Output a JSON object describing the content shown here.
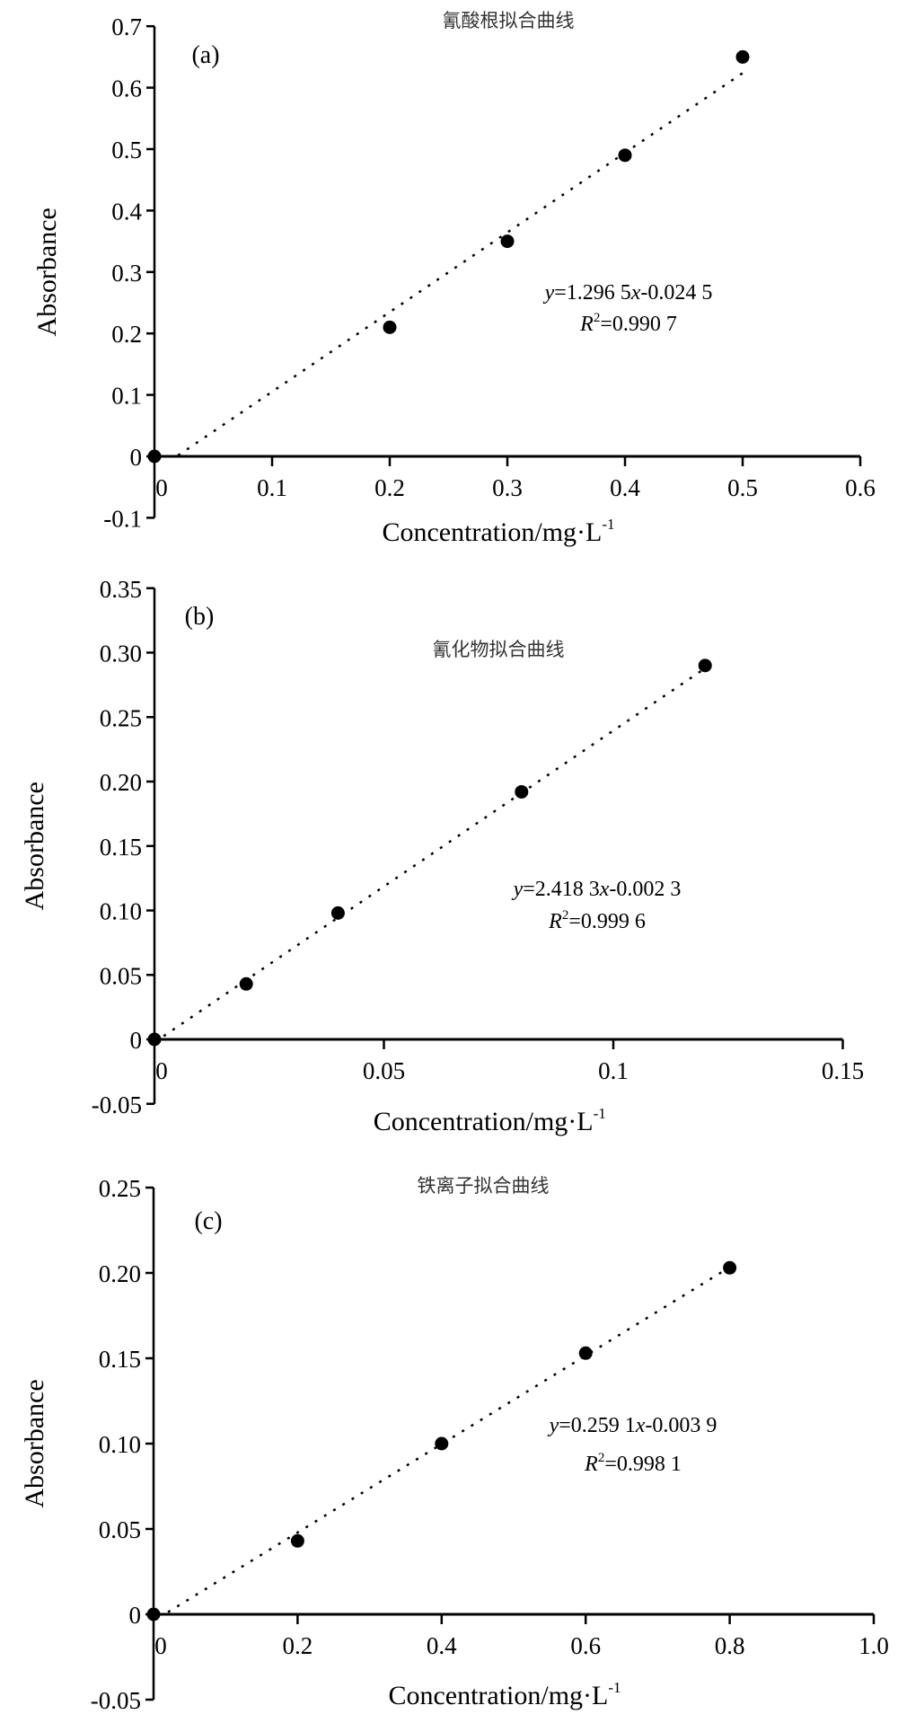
{
  "chart_data": [
    {
      "type": "scatter",
      "panel_label": "(a)",
      "title": "氰酸根拟合曲线",
      "xlabel": "Concentration/mg·L",
      "xlabel_sup": "-1",
      "ylabel": "Absorbance",
      "xlim": [
        0,
        0.6
      ],
      "ylim": [
        -0.1,
        0.7
      ],
      "x_ticks": [
        "0",
        "0.1",
        "0.2",
        "0.3",
        "0.4",
        "0.5",
        "0.6"
      ],
      "x_tick_values": [
        0,
        0.1,
        0.2,
        0.3,
        0.4,
        0.5,
        0.6
      ],
      "y_ticks": [
        "-0.1",
        "0",
        "0.1",
        "0.2",
        "0.3",
        "0.4",
        "0.5",
        "0.6",
        "0.7"
      ],
      "y_tick_values": [
        -0.1,
        0,
        0.1,
        0.2,
        0.3,
        0.4,
        0.5,
        0.6,
        0.7
      ],
      "x": [
        0,
        0.2,
        0.3,
        0.4,
        0.5
      ],
      "y": [
        0,
        0.21,
        0.35,
        0.49,
        0.65
      ],
      "fit": {
        "slope": 1.2965,
        "intercept": -0.0245,
        "x_range": [
          0.02,
          0.5
        ]
      },
      "equation": {
        "y": "y",
        "rhs1": "=1.296 5",
        "x": "x",
        "rhs2": "-0.024 5",
        "r": "R",
        "r_sup": "2",
        "r_val": "=0.990 7"
      },
      "grid": false
    },
    {
      "type": "scatter",
      "panel_label": "(b)",
      "title": "氰化物拟合曲线",
      "xlabel": "Concentration/mg·L",
      "xlabel_sup": "-1",
      "ylabel": "Absorbance",
      "xlim": [
        0,
        0.15
      ],
      "ylim": [
        -0.05,
        0.35
      ],
      "x_ticks": [
        "0",
        "0.05",
        "0.1",
        "0.15"
      ],
      "x_tick_values": [
        0,
        0.05,
        0.1,
        0.15
      ],
      "y_ticks": [
        "-0.05",
        "0",
        "0.05",
        "0.10",
        "0.15",
        "0.20",
        "0.25",
        "0.30",
        "0.35"
      ],
      "y_tick_values": [
        -0.05,
        0,
        0.05,
        0.1,
        0.15,
        0.2,
        0.25,
        0.3,
        0.35
      ],
      "x": [
        0,
        0.02,
        0.04,
        0.08,
        0.12
      ],
      "y": [
        0,
        0.043,
        0.098,
        0.192,
        0.29
      ],
      "fit": {
        "slope": 2.4183,
        "intercept": -0.0023,
        "x_range": [
          0.002,
          0.12
        ]
      },
      "equation": {
        "y": "y",
        "rhs1": "=2.418 3",
        "x": "x",
        "rhs2": "-0.002 3",
        "r": "R",
        "r_sup": "2",
        "r_val": "=0.999 6"
      },
      "grid": false
    },
    {
      "type": "scatter",
      "panel_label": "(c)",
      "title": "铁离子拟合曲线",
      "xlabel": "Concentration/mg·L",
      "xlabel_sup": "-1",
      "ylabel": "Absorbance",
      "xlim": [
        0,
        1.0
      ],
      "ylim": [
        -0.05,
        0.25
      ],
      "x_ticks": [
        "0",
        "0.2",
        "0.4",
        "0.6",
        "0.8",
        "1.0"
      ],
      "x_tick_values": [
        0,
        0.2,
        0.4,
        0.6,
        0.8,
        1.0
      ],
      "y_ticks": [
        "-0.05",
        "0",
        "0.05",
        "0.10",
        "0.15",
        "0.20",
        "0.25"
      ],
      "y_tick_values": [
        -0.05,
        0,
        0.05,
        0.1,
        0.15,
        0.2,
        0.25
      ],
      "x": [
        0,
        0.2,
        0.4,
        0.6,
        0.8
      ],
      "y": [
        0,
        0.043,
        0.1,
        0.153,
        0.203
      ],
      "fit": {
        "slope": 0.2591,
        "intercept": -0.0039,
        "x_range": [
          0.02,
          0.8
        ]
      },
      "equation": {
        "y": "y",
        "rhs1": "=0.259 1",
        "x": "x",
        "rhs2": "-0.003 9",
        "r": "R",
        "r_sup": "2",
        "r_val": "=0.998 1"
      },
      "grid": false
    }
  ]
}
